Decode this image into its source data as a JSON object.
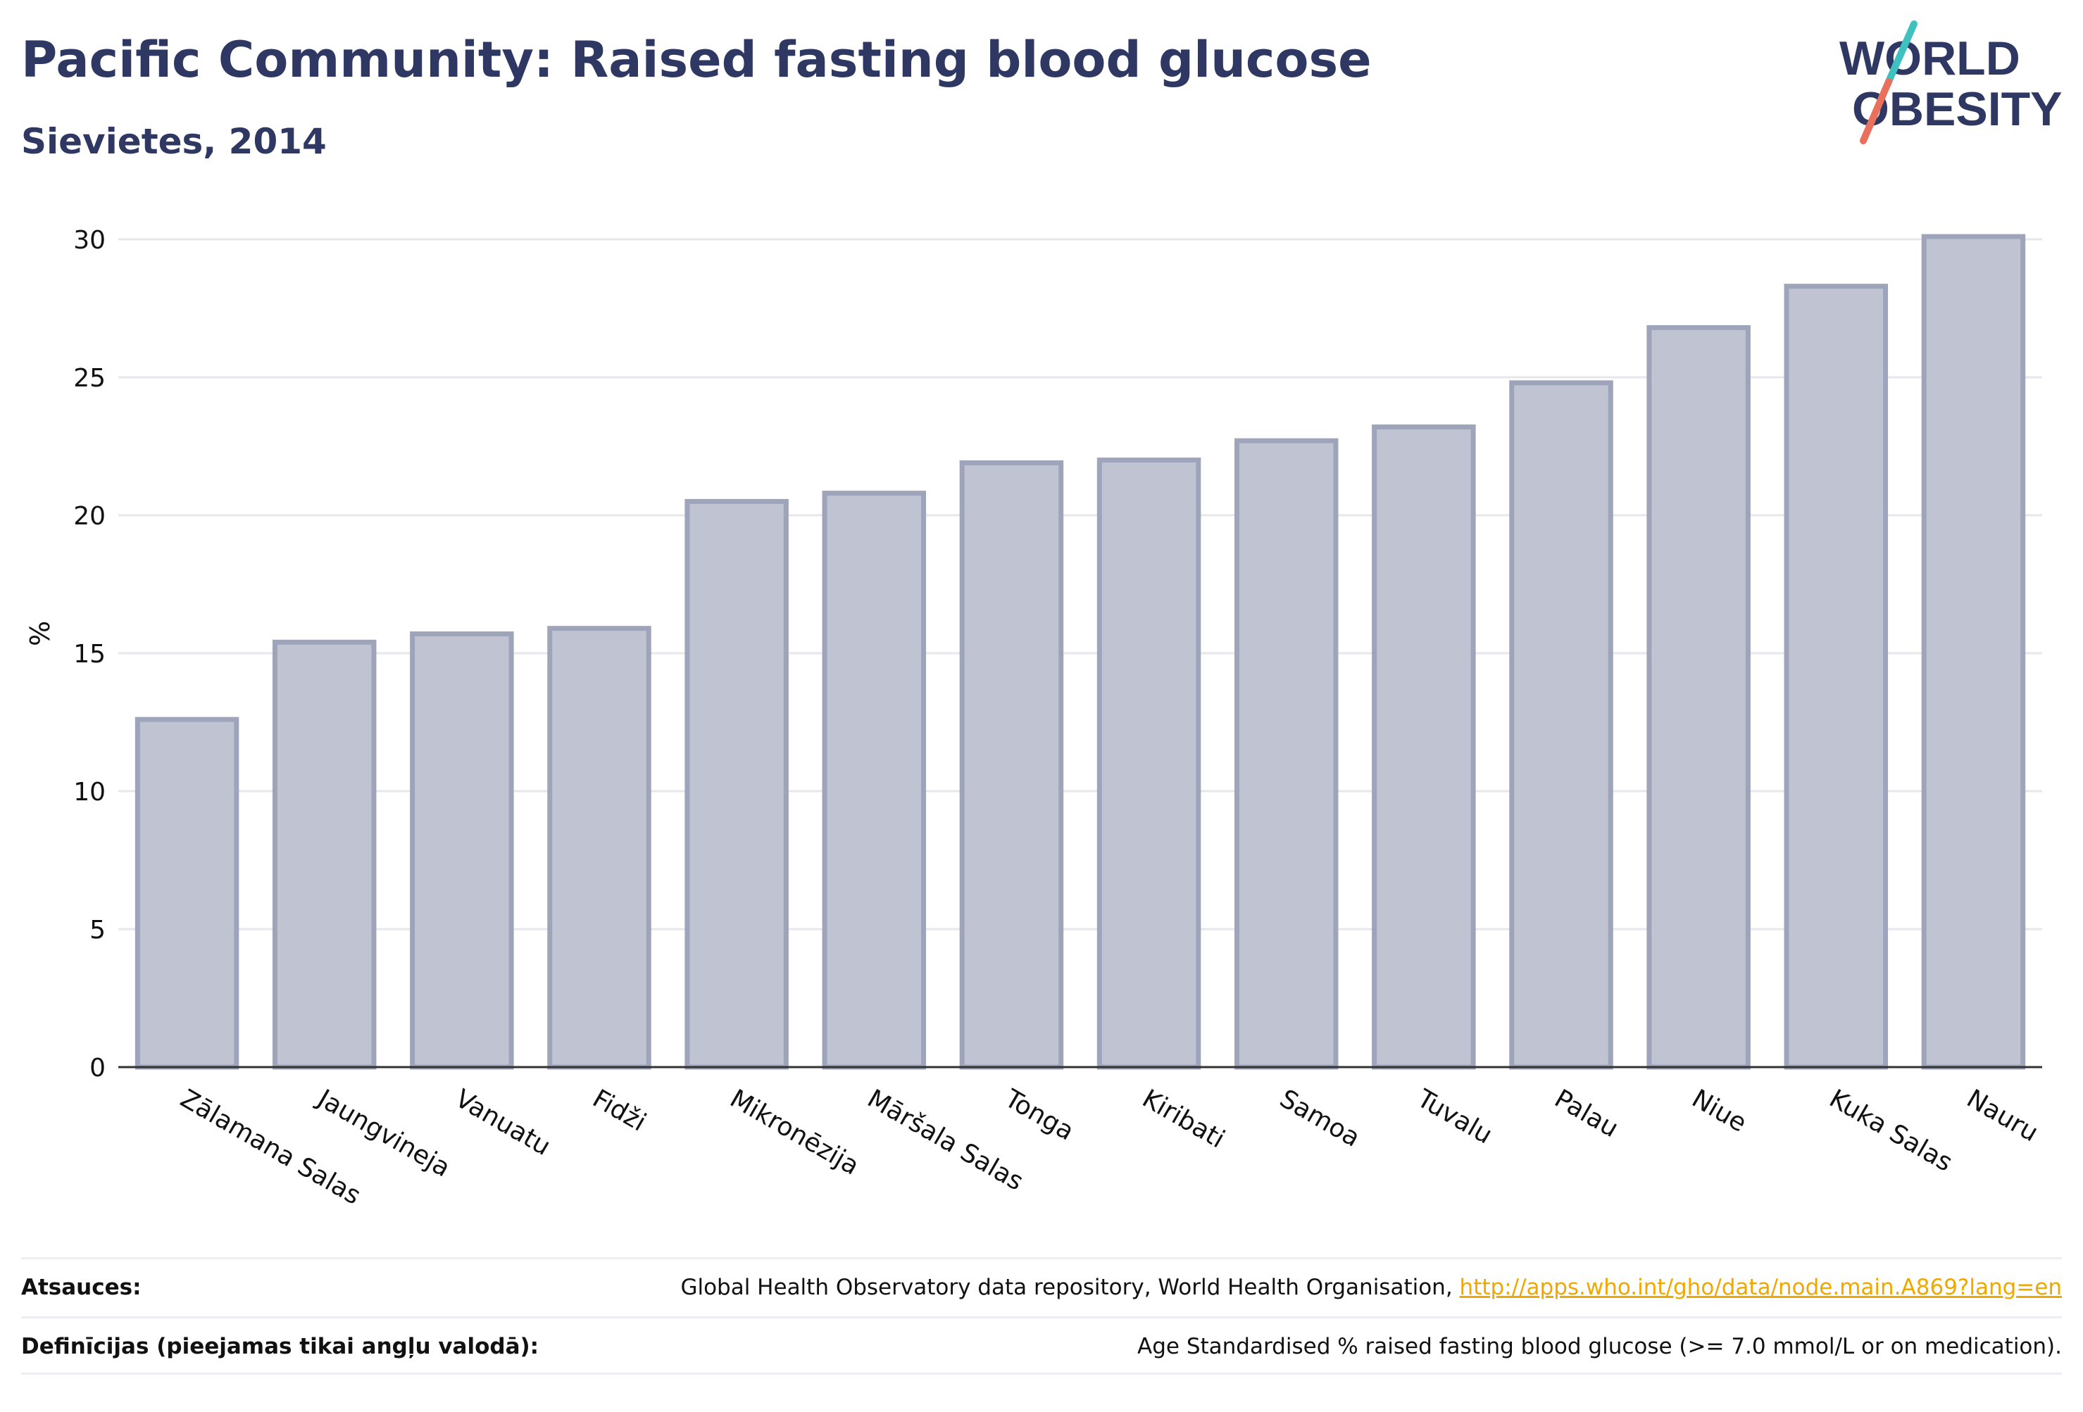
{
  "header": {
    "title": "Pacific Community: Raised fasting blood glucose",
    "subtitle": "Sievietes, 2014"
  },
  "logo": {
    "line1": "WORLD",
    "line2": "OBESITY"
  },
  "chart_data": {
    "type": "bar",
    "categories": [
      "Zālamana Salas",
      "Jaungvineja",
      "Vanuatu",
      "Fidži",
      "Mikronēzija",
      "Māršala Salas",
      "Tonga",
      "Kiribati",
      "Samoa",
      "Tuvalu",
      "Palau",
      "Niue",
      "Kuka Salas",
      "Nauru"
    ],
    "values": [
      12.6,
      15.4,
      15.7,
      15.9,
      20.5,
      20.8,
      21.9,
      22.0,
      22.7,
      23.2,
      24.8,
      26.8,
      28.3,
      30.1
    ],
    "ylabel": "%",
    "ylim": [
      0,
      30
    ],
    "yticks": [
      0,
      5,
      10,
      15,
      20,
      25,
      30
    ],
    "grid": true,
    "bar_color": "#bfc3d2",
    "bar_border_color": "#9ea4ba",
    "axis_color": "#333333"
  },
  "footer": {
    "sources_label": "Atsauces:",
    "sources_text": "Global Health Observatory data repository, World Health Organisation, ",
    "sources_link": "http://apps.who.int/gho/data/node.main.A869?lang=en",
    "definitions_label": "Definīcijas (pieejamas tikai angļu valodā):",
    "definitions_text": "Age Standardised % raised fasting blood glucose (>= 7.0 mmol/L or on medication)."
  }
}
